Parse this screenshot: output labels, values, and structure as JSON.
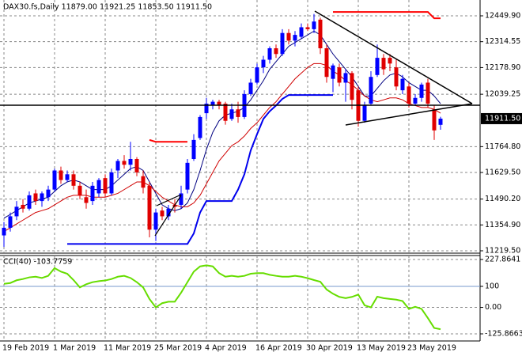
{
  "chart_data": [
    {
      "type": "candlestick",
      "title": "DAX30.fs,Daily  11879.00 11921.25 11853.50 11911.50",
      "categories": [
        "19 Feb 2019",
        null,
        null,
        null,
        null,
        null,
        null,
        null,
        "1 Mar 2019",
        null,
        null,
        null,
        null,
        null,
        null,
        null,
        "11 Mar 2019",
        null,
        null,
        null,
        null,
        null,
        null,
        null,
        "25 Mar 2019",
        null,
        null,
        null,
        null,
        null,
        null,
        null,
        "4 Apr 2019",
        null,
        null,
        null,
        null,
        null,
        null,
        null,
        "16 Apr 2019",
        null,
        null,
        null,
        null,
        null,
        null,
        null,
        "30 Apr 2019",
        null,
        null,
        null,
        null,
        null,
        null,
        null,
        "13 May 2019",
        null,
        null,
        null,
        null,
        null,
        null,
        null,
        "23 May 2019",
        null,
        null,
        null,
        null,
        null
      ],
      "ohlc": [
        [
          11300,
          11370,
          11240,
          11340
        ],
        [
          11340,
          11420,
          11320,
          11400
        ],
        [
          11400,
          11480,
          11380,
          11450
        ],
        [
          11460,
          11490,
          11420,
          11440
        ],
        [
          11440,
          11530,
          11430,
          11510
        ],
        [
          11520,
          11540,
          11460,
          11480
        ],
        [
          11480,
          11530,
          11450,
          11520
        ],
        [
          11500,
          11560,
          11480,
          11540
        ],
        [
          11540,
          11650,
          11530,
          11640
        ],
        [
          11640,
          11660,
          11570,
          11590
        ],
        [
          11590,
          11640,
          11580,
          11620
        ],
        [
          11620,
          11640,
          11540,
          11560
        ],
        [
          11560,
          11580,
          11490,
          11510
        ],
        [
          11500,
          11540,
          11440,
          11470
        ],
        [
          11480,
          11580,
          11460,
          11560
        ],
        [
          11520,
          11600,
          11500,
          11590
        ],
        [
          11600,
          11620,
          11500,
          11520
        ],
        [
          11520,
          11650,
          11510,
          11630
        ],
        [
          11640,
          11700,
          11600,
          11690
        ],
        [
          11690,
          11720,
          11650,
          11670
        ],
        [
          11670,
          11790,
          11640,
          11700
        ],
        [
          11700,
          11710,
          11610,
          11630
        ],
        [
          11610,
          11640,
          11520,
          11550
        ],
        [
          11560,
          11580,
          11290,
          11330
        ],
        [
          11330,
          11440,
          11270,
          11420
        ],
        [
          11430,
          11450,
          11380,
          11400
        ],
        [
          11400,
          11460,
          11380,
          11440
        ],
        [
          11460,
          11490,
          11420,
          11450
        ],
        [
          11460,
          11560,
          11440,
          11520
        ],
        [
          11540,
          11700,
          11520,
          11680
        ],
        [
          11700,
          11830,
          11690,
          11800
        ],
        [
          11810,
          11930,
          11800,
          11920
        ],
        [
          11940,
          12020,
          11910,
          11990
        ],
        [
          11980,
          12010,
          11960,
          12000
        ],
        [
          12000,
          12010,
          11960,
          11980
        ],
        [
          11990,
          12000,
          11880,
          11900
        ],
        [
          11910,
          11990,
          11900,
          11960
        ],
        [
          11960,
          12000,
          11890,
          11920
        ],
        [
          11920,
          12060,
          11910,
          12040
        ],
        [
          12040,
          12120,
          12030,
          12100
        ],
        [
          12100,
          12200,
          12090,
          12180
        ],
        [
          12180,
          12240,
          12150,
          12220
        ],
        [
          12220,
          12290,
          12200,
          12280
        ],
        [
          12280,
          12300,
          12230,
          12250
        ],
        [
          12250,
          12380,
          12240,
          12360
        ],
        [
          12360,
          12380,
          12300,
          12320
        ],
        [
          12320,
          12370,
          12290,
          12350
        ],
        [
          12340,
          12410,
          12330,
          12390
        ],
        [
          12390,
          12410,
          12370,
          12380
        ],
        [
          12380,
          12460,
          12360,
          12420
        ],
        [
          12430,
          12440,
          12250,
          12280
        ],
        [
          12280,
          12300,
          12100,
          12130
        ],
        [
          12120,
          12200,
          12050,
          12190
        ],
        [
          12180,
          12200,
          12080,
          12100
        ],
        [
          12100,
          12170,
          12000,
          12150
        ],
        [
          12150,
          12160,
          11960,
          12010
        ],
        [
          12060,
          12080,
          11870,
          11900
        ],
        [
          11900,
          12000,
          11890,
          11980
        ],
        [
          11990,
          12160,
          11980,
          12130
        ],
        [
          12140,
          12300,
          12130,
          12230
        ],
        [
          12230,
          12250,
          12140,
          12170
        ],
        [
          12230,
          12250,
          12160,
          12200
        ],
        [
          12180,
          12220,
          12060,
          12080
        ],
        [
          12060,
          12140,
          12040,
          12120
        ],
        [
          12080,
          12100,
          11970,
          11990
        ],
        [
          11990,
          12040,
          11980,
          12020
        ],
        [
          12020,
          12100,
          12000,
          12090
        ],
        [
          12100,
          12120,
          11970,
          11990
        ],
        [
          11960,
          11980,
          11800,
          11850
        ],
        [
          11879,
          11921.25,
          11853.5,
          11911.5
        ]
      ],
      "up_color": "#0000ff",
      "down_color": "#e00000",
      "lines": [
        {
          "color": "#000080",
          "width": 1,
          "values": [
            11390,
            11410,
            11430,
            11450,
            11470,
            11480,
            11490,
            11500,
            11530,
            11560,
            11580,
            11590,
            11580,
            11560,
            11540,
            11540,
            11540,
            11560,
            11590,
            11620,
            11650,
            11660,
            11640,
            11580,
            11520,
            11460,
            11440,
            11430,
            11440,
            11470,
            11540,
            11640,
            11750,
            11840,
            11900,
            11930,
            11940,
            11950,
            11970,
            12010,
            12060,
            12110,
            12170,
            12210,
            12250,
            12290,
            12310,
            12330,
            12350,
            12370,
            12350,
            12300,
            12250,
            12210,
            12170,
            12130,
            12080,
            12030,
            12030,
            12070,
            12110,
            12140,
            12150,
            12130,
            12100,
            12080,
            12060,
            12060,
            12030,
            11990
          ]
        },
        {
          "color": "#d00000",
          "width": 1,
          "values": [
            11320,
            11340,
            11360,
            11380,
            11400,
            11420,
            11430,
            11440,
            11460,
            11480,
            11500,
            11510,
            11510,
            11510,
            11500,
            11500,
            11500,
            11510,
            11520,
            11540,
            11560,
            11580,
            11580,
            11560,
            11530,
            11500,
            11480,
            11460,
            11450,
            11450,
            11470,
            11510,
            11570,
            11630,
            11690,
            11730,
            11770,
            11790,
            11820,
            11860,
            11890,
            11930,
            11970,
            12000,
            12040,
            12080,
            12120,
            12150,
            12180,
            12200,
            12200,
            12190,
            12160,
            12140,
            12110,
            12090,
            12060,
            12030,
            12010,
            12000,
            12010,
            12020,
            12020,
            12010,
            11990,
            11980,
            11970,
            11970,
            11960,
            11940
          ]
        },
        {
          "color": "#0000ee",
          "width": 2,
          "values": [
            null,
            null,
            null,
            null,
            null,
            null,
            null,
            null,
            null,
            null,
            11255,
            11255,
            11255,
            11255,
            11255,
            11255,
            11255,
            11255,
            11255,
            11255,
            11255,
            11255,
            11255,
            11255,
            11255,
            11255,
            11255,
            11255,
            11255,
            11255,
            11310,
            11420,
            11480,
            11480,
            11480,
            11480,
            11480,
            11540,
            11620,
            11745,
            11830,
            11910,
            11950,
            11980,
            12015,
            12035,
            12035,
            12035,
            12035,
            12035,
            12035,
            12035,
            12035,
            null,
            null,
            null,
            null,
            null,
            null,
            null,
            null,
            null,
            null,
            null,
            null,
            null,
            null,
            null,
            null,
            null
          ]
        },
        {
          "color": "#ff0000",
          "width": 2,
          "values": [
            null,
            null,
            null,
            null,
            null,
            null,
            null,
            null,
            null,
            null,
            null,
            null,
            null,
            null,
            null,
            null,
            null,
            null,
            null,
            null,
            null,
            null,
            null,
            11800,
            11790,
            11790,
            11790,
            11790,
            11790,
            11790,
            null,
            null,
            null,
            null,
            null,
            null,
            null,
            null,
            null,
            null,
            null,
            null,
            null,
            null,
            null,
            null,
            null,
            null,
            null,
            null,
            null,
            null,
            12470,
            12470,
            12470,
            12470,
            12470,
            12470,
            12470,
            12470,
            12470,
            12470,
            12470,
            12470,
            12470,
            12470,
            12470,
            12470,
            12437,
            12437
          ]
        }
      ],
      "ylim": [
        11215.3,
        12532.8
      ],
      "yticks": [
        {
          "value": 12449.9,
          "label": "12449.90"
        },
        12314.55,
        {
          "value": 12178.9,
          "label": "12178.90"
        },
        12039.25,
        {
          "value": 11764.8,
          "label": "11764.80"
        },
        {
          "value": 11629.5,
          "label": "11629.50"
        },
        {
          "value": 11490.2,
          "label": "11490.20"
        },
        {
          "value": 11354.9,
          "label": "11354.90"
        },
        {
          "value": 11219.5,
          "label": "11219.50"
        }
      ],
      "price_label": {
        "value": 11911.5,
        "label": "11911.50"
      },
      "grid": true
    },
    {
      "type": "line",
      "title": "CCI(40) -103.7759",
      "color": "#66dd00",
      "values": [
        112,
        116,
        129,
        135,
        143,
        146,
        140,
        150,
        187,
        170,
        160,
        130,
        95,
        110,
        120,
        125,
        128,
        135,
        146,
        150,
        140,
        120,
        95,
        40,
        0,
        20,
        27,
        27,
        70,
        120,
        170,
        195,
        200,
        195,
        163,
        146,
        150,
        146,
        150,
        160,
        163,
        163,
        155,
        150,
        146,
        146,
        150,
        146,
        139,
        130,
        122,
        85,
        65,
        50,
        44,
        50,
        61,
        10,
        0,
        51,
        44,
        40,
        37,
        30,
        -7,
        3,
        -7,
        -51,
        -98,
        -103.7759
      ],
      "ylim": [
        -125.8663,
        227.8641
      ],
      "yticks": [
        {
          "value": 227.8641,
          "label": "227.8641"
        },
        100,
        {
          "value": 0,
          "label": "0.00"
        },
        {
          "value": -125.8663,
          "label": "-125.8663"
        }
      ],
      "level": 100,
      "level_color": "#7799cc",
      "grid": true
    }
  ]
}
